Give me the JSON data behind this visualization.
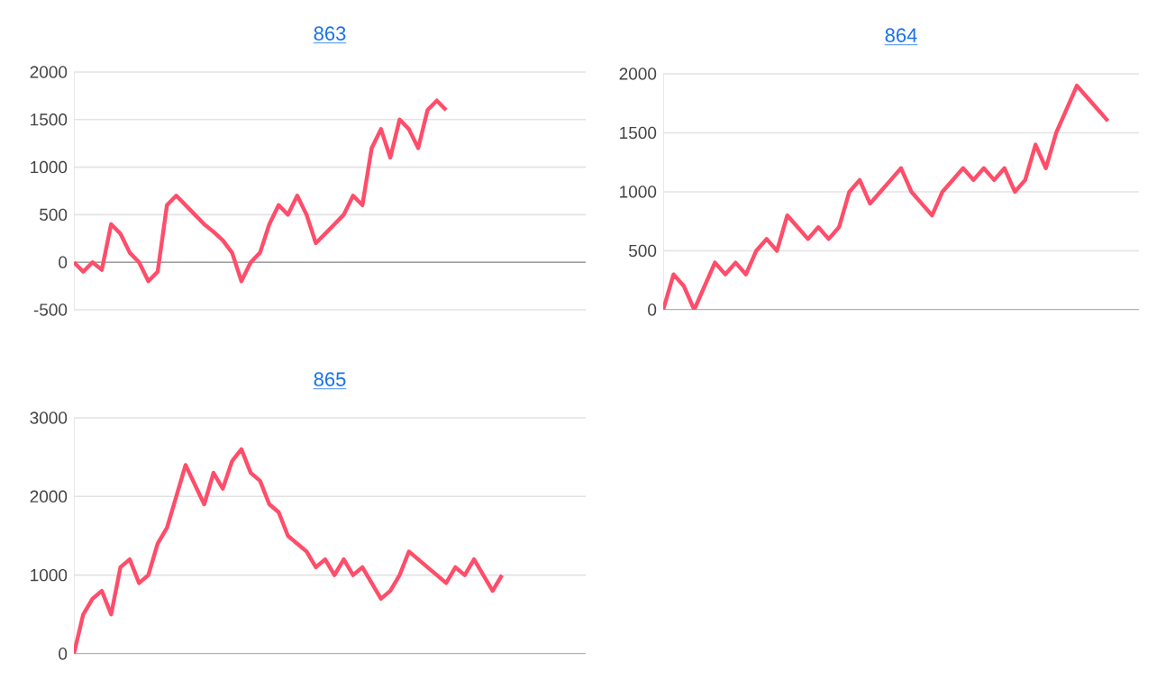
{
  "chart_data": [
    {
      "type": "line",
      "title": "863",
      "color": "#ff4d6a",
      "ylim": [
        -500,
        2000
      ],
      "yticks": [
        -500,
        0,
        500,
        1000,
        1500,
        2000
      ],
      "grid": "y",
      "tick_labels": "y",
      "categories": [
        null,
        null,
        null,
        null,
        null,
        null,
        null,
        null,
        null,
        null,
        null,
        null,
        null,
        null,
        null,
        null,
        null,
        null,
        null,
        null,
        null,
        null,
        null,
        null,
        null,
        null,
        null,
        null,
        null,
        null,
        null,
        null,
        null,
        null,
        null,
        null,
        null,
        null,
        null,
        null,
        null,
        null,
        null,
        null,
        null,
        null,
        null,
        null,
        null,
        null,
        null,
        null,
        null,
        null,
        null,
        null
      ],
      "values": [
        0,
        -100,
        0,
        -80,
        400,
        300,
        100,
        0,
        -200,
        -100,
        600,
        700,
        600,
        500,
        400,
        320,
        230,
        100,
        -200,
        0,
        100,
        400,
        600,
        500,
        700,
        500,
        200,
        300,
        400,
        500,
        700,
        600,
        1200,
        1400,
        1100,
        1500,
        1400,
        1200,
        1600,
        1700,
        1600,
        null,
        null,
        null,
        null,
        null,
        null,
        null,
        null,
        null,
        null,
        null,
        null,
        null,
        null,
        null
      ]
    },
    {
      "type": "line",
      "title": "864",
      "color": "#ff4d6a",
      "ylim": [
        0,
        2000
      ],
      "yticks": [
        0,
        500,
        1000,
        1500,
        2000
      ],
      "grid": "y",
      "tick_labels": "y",
      "categories": [
        null,
        null,
        null,
        null,
        null,
        null,
        null,
        null,
        null,
        null,
        null,
        null,
        null,
        null,
        null,
        null,
        null,
        null,
        null,
        null,
        null,
        null,
        null,
        null,
        null,
        null,
        null,
        null,
        null,
        null,
        null,
        null,
        null,
        null,
        null,
        null,
        null,
        null,
        null,
        null,
        null,
        null,
        null,
        null,
        null,
        null,
        null
      ],
      "values": [
        0,
        300,
        200,
        0,
        200,
        400,
        300,
        400,
        300,
        500,
        600,
        500,
        800,
        700,
        600,
        700,
        600,
        700,
        1000,
        1100,
        900,
        1000,
        1100,
        1200,
        1000,
        900,
        800,
        1000,
        1100,
        1200,
        1100,
        1200,
        1100,
        1200,
        1000,
        1100,
        1400,
        1200,
        1500,
        1700,
        1900,
        1800,
        1700,
        1600,
        null,
        null,
        null
      ]
    },
    {
      "type": "line",
      "title": "865",
      "color": "#ff4d6a",
      "ylim": [
        0,
        3000
      ],
      "yticks": [
        0,
        1000,
        2000,
        3000
      ],
      "grid": "y",
      "tick_labels": "y",
      "categories": [
        null,
        null,
        null,
        null,
        null,
        null,
        null,
        null,
        null,
        null,
        null,
        null,
        null,
        null,
        null,
        null,
        null,
        null,
        null,
        null,
        null,
        null,
        null,
        null,
        null,
        null,
        null,
        null,
        null,
        null,
        null,
        null,
        null,
        null,
        null,
        null,
        null,
        null,
        null,
        null,
        null,
        null,
        null,
        null,
        null,
        null,
        null,
        null,
        null,
        null,
        null,
        null,
        null,
        null,
        null,
        null
      ],
      "values": [
        0,
        500,
        700,
        800,
        500,
        1100,
        1200,
        900,
        1000,
        1400,
        1600,
        2000,
        2400,
        2150,
        1900,
        2300,
        2100,
        2450,
        2600,
        2300,
        2200,
        1900,
        1800,
        1500,
        1400,
        1300,
        1100,
        1200,
        1000,
        1200,
        1000,
        1100,
        900,
        700,
        800,
        1000,
        1300,
        1200,
        1100,
        1000,
        900,
        1100,
        1000,
        1200,
        1000,
        800,
        1000,
        null,
        null,
        null,
        null,
        null,
        null,
        null,
        null,
        null
      ]
    }
  ]
}
